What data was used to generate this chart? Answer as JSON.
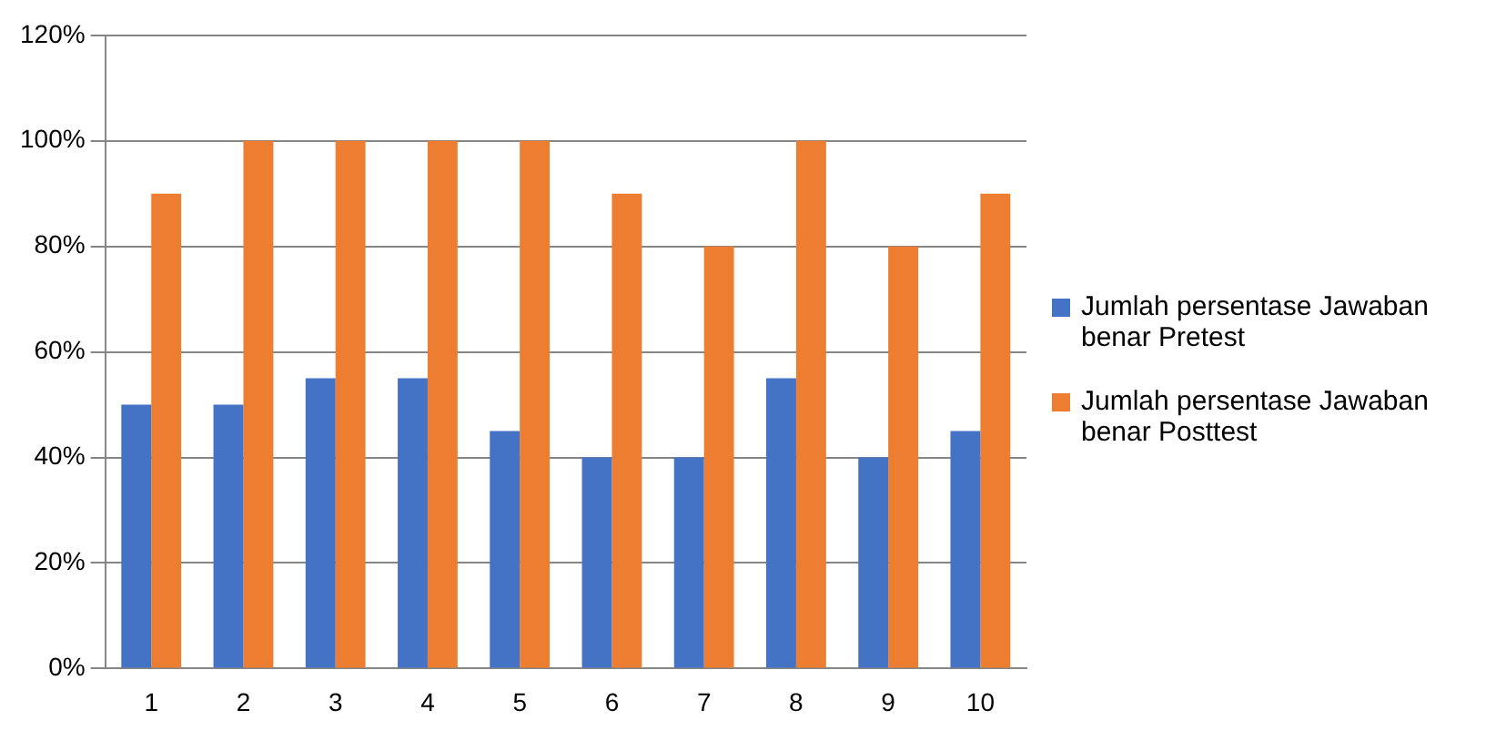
{
  "chart_data": {
    "type": "bar",
    "categories": [
      "1",
      "2",
      "3",
      "4",
      "5",
      "6",
      "7",
      "8",
      "9",
      "10"
    ],
    "series": [
      {
        "name": "Jumlah persentase Jawaban benar Pretest",
        "color": "#4472c4",
        "values": [
          50,
          50,
          55,
          55,
          45,
          40,
          40,
          55,
          40,
          45
        ]
      },
      {
        "name": "Jumlah persentase Jawaban benar Posttest",
        "color": "#ed7d31",
        "values": [
          90,
          100,
          100,
          100,
          100,
          90,
          80,
          100,
          80,
          90
        ]
      }
    ],
    "ylim": [
      0,
      120
    ],
    "yticks": [
      {
        "value": 0,
        "label": "0%"
      },
      {
        "value": 20,
        "label": "20%"
      },
      {
        "value": 40,
        "label": "40%"
      },
      {
        "value": 60,
        "label": "60%"
      },
      {
        "value": 80,
        "label": "80%"
      },
      {
        "value": 100,
        "label": "100%"
      },
      {
        "value": 120,
        "label": "120%"
      }
    ],
    "grid": "y",
    "legend": "right"
  }
}
